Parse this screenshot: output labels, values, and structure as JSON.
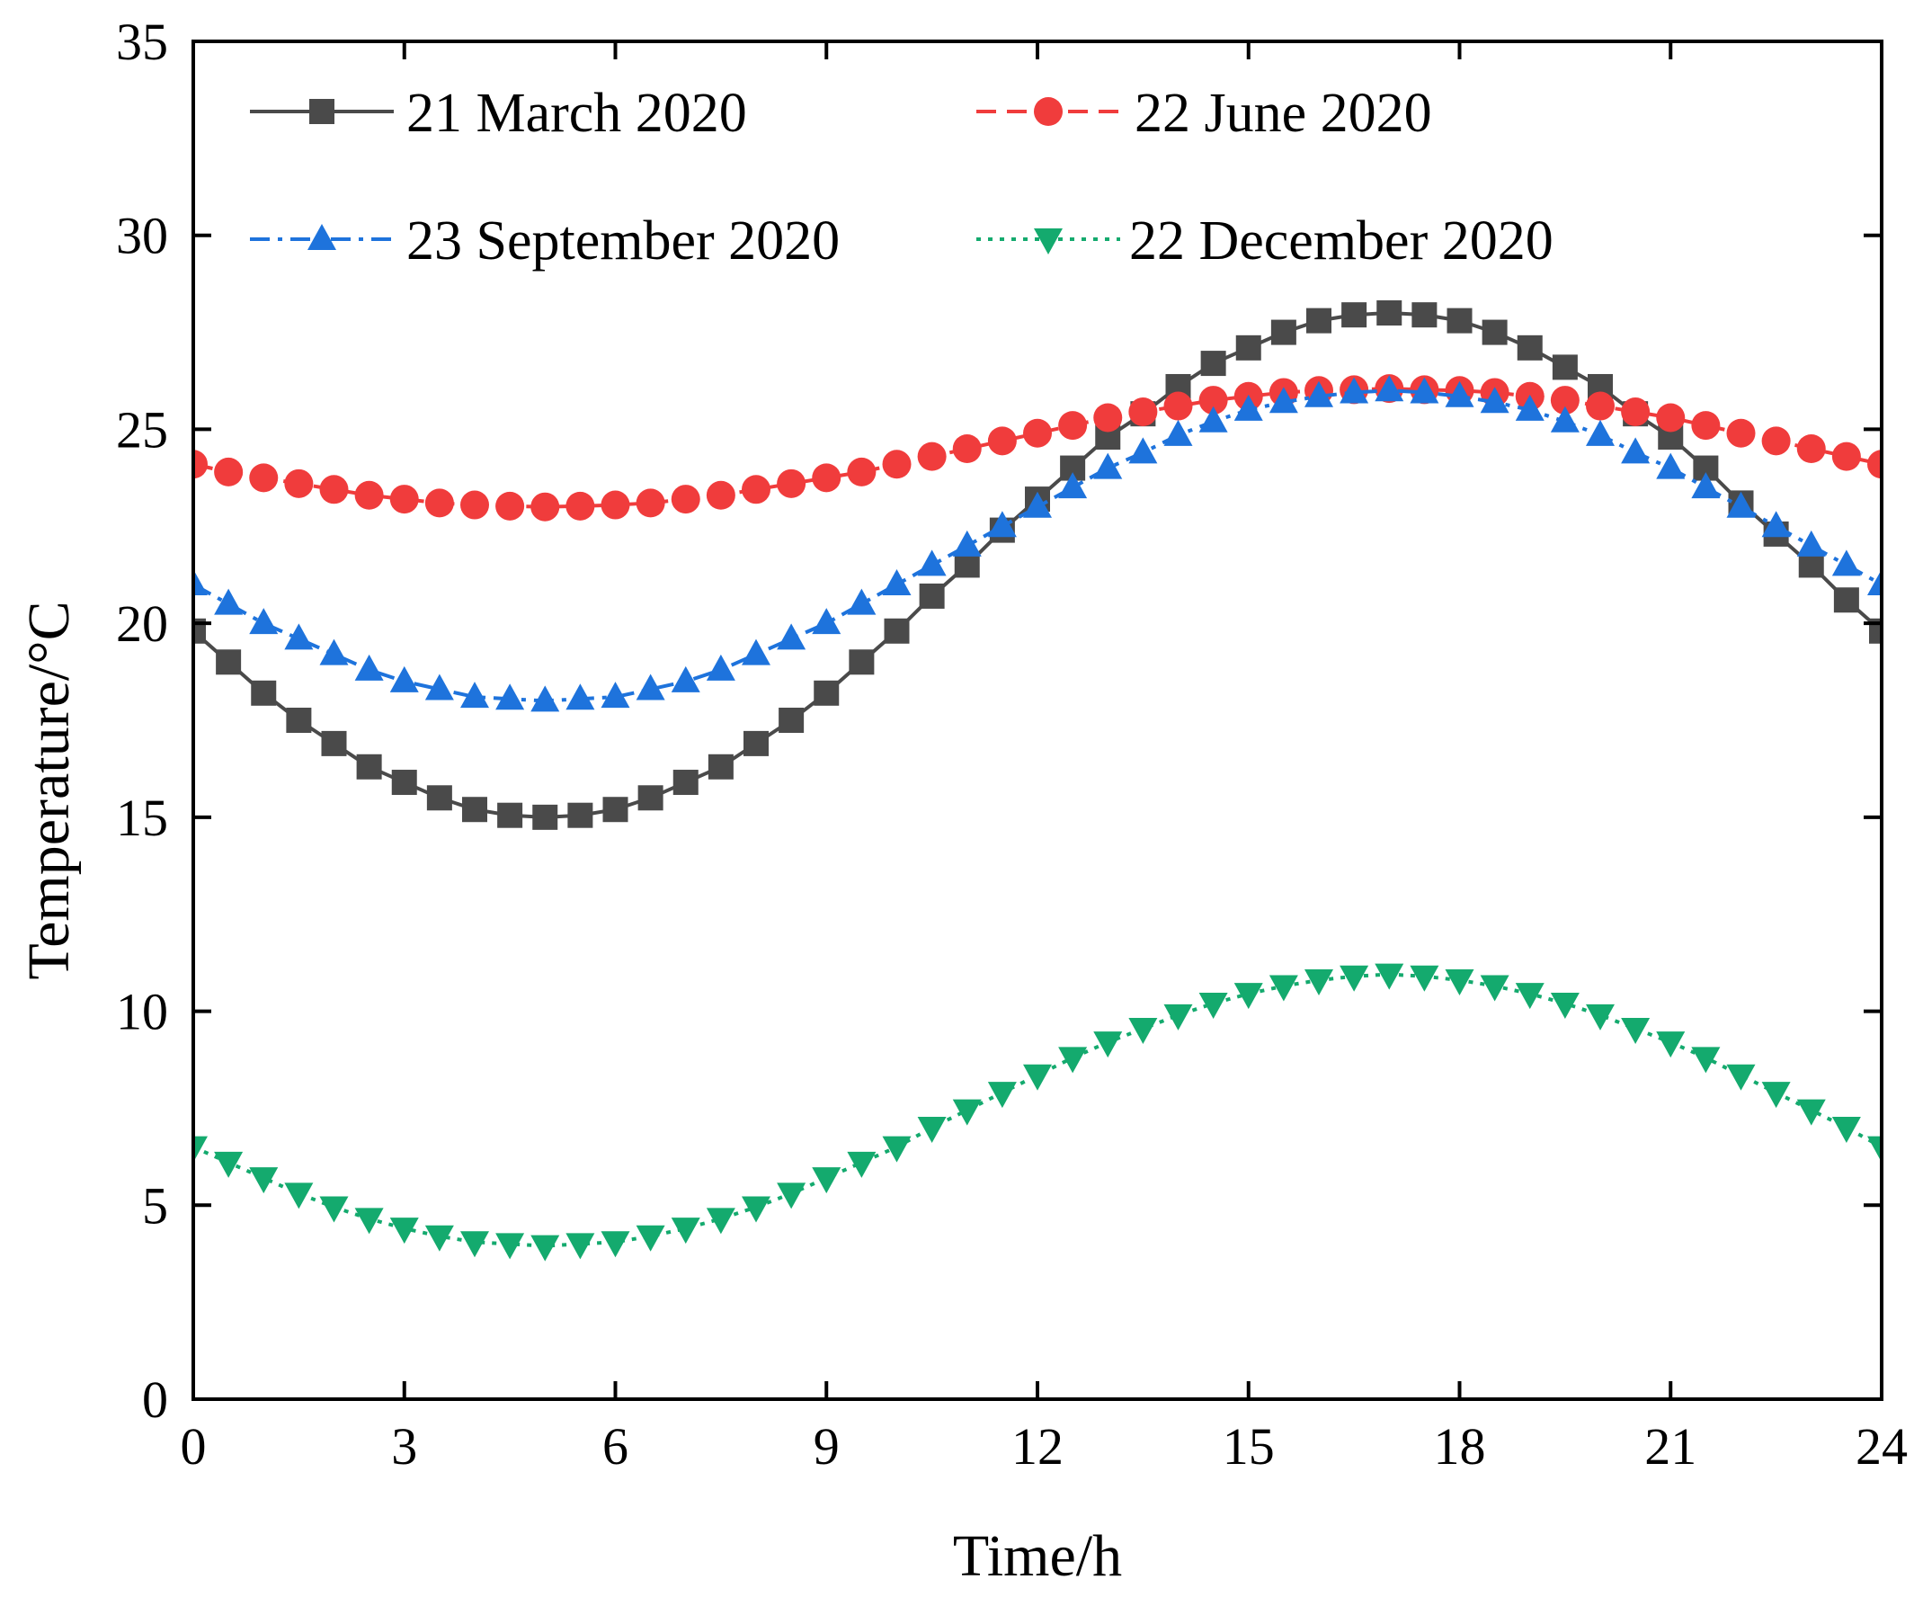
{
  "chart_data": {
    "type": "line",
    "title": "",
    "xlabel": "Time/h",
    "ylabel": "Temperature/°C",
    "xlim": [
      0,
      24
    ],
    "ylim": [
      0,
      35
    ],
    "xticks": [
      0,
      3,
      6,
      9,
      12,
      15,
      18,
      21,
      24
    ],
    "yticks": [
      0,
      5,
      10,
      15,
      20,
      25,
      30,
      35
    ],
    "grid": false,
    "legend_position": "top-left, two columns",
    "x": [
      0,
      0.5,
      1,
      1.5,
      2,
      2.5,
      3,
      3.5,
      4,
      4.5,
      5,
      5.5,
      6,
      6.5,
      7,
      7.5,
      8,
      8.5,
      9,
      9.5,
      10,
      10.5,
      11,
      11.5,
      12,
      12.5,
      13,
      13.5,
      14,
      14.5,
      15,
      15.5,
      16,
      16.5,
      17,
      17.5,
      18,
      18.5,
      19,
      19.5,
      20,
      20.5,
      21,
      21.5,
      22,
      22.5,
      23,
      23.5,
      24
    ],
    "series": [
      {
        "name": "21 March 2020",
        "color": "#4a4a4a",
        "marker": "square",
        "line_style": "solid",
        "values": [
          19.8,
          19.0,
          18.2,
          17.5,
          16.9,
          16.3,
          15.9,
          15.5,
          15.2,
          15.05,
          15.0,
          15.05,
          15.2,
          15.5,
          15.9,
          16.3,
          16.9,
          17.5,
          18.2,
          19.0,
          19.8,
          20.7,
          21.5,
          22.4,
          23.2,
          24.0,
          24.8,
          25.4,
          26.1,
          26.7,
          27.1,
          27.5,
          27.8,
          27.95,
          28.0,
          27.95,
          27.8,
          27.5,
          27.1,
          26.6,
          26.1,
          25.4,
          24.8,
          24.0,
          23.1,
          22.3,
          21.5,
          20.6,
          19.8
        ]
      },
      {
        "name": "22 June 2020",
        "color": "#f03c3c",
        "marker": "circle",
        "line_style": "dashed",
        "values": [
          24.1,
          23.9,
          23.75,
          23.6,
          23.45,
          23.3,
          23.2,
          23.1,
          23.05,
          23.02,
          23.0,
          23.02,
          23.05,
          23.1,
          23.2,
          23.3,
          23.45,
          23.6,
          23.75,
          23.9,
          24.1,
          24.3,
          24.5,
          24.7,
          24.9,
          25.1,
          25.3,
          25.45,
          25.6,
          25.75,
          25.85,
          25.95,
          26.0,
          26.02,
          26.05,
          26.02,
          26.0,
          25.95,
          25.85,
          25.75,
          25.6,
          25.45,
          25.3,
          25.1,
          24.9,
          24.7,
          24.5,
          24.3,
          24.1
        ]
      },
      {
        "name": "23 September 2020",
        "color": "#1e73dc",
        "marker": "triangle-up",
        "line_style": "dash-dot",
        "values": [
          21.0,
          20.5,
          20.0,
          19.6,
          19.2,
          18.8,
          18.5,
          18.3,
          18.1,
          18.05,
          18.0,
          18.05,
          18.1,
          18.3,
          18.5,
          18.8,
          19.2,
          19.6,
          20.0,
          20.5,
          21.0,
          21.5,
          22.0,
          22.5,
          23.0,
          23.5,
          24.0,
          24.4,
          24.85,
          25.2,
          25.5,
          25.7,
          25.85,
          25.95,
          26.0,
          25.95,
          25.85,
          25.7,
          25.5,
          25.2,
          24.85,
          24.4,
          24.0,
          23.5,
          23.0,
          22.5,
          22.0,
          21.5,
          21.0
        ]
      },
      {
        "name": "22 December 2020",
        "color": "#14aa6e",
        "marker": "triangle-down",
        "line_style": "dotted",
        "values": [
          6.5,
          6.1,
          5.7,
          5.3,
          4.95,
          4.65,
          4.4,
          4.2,
          4.05,
          4.0,
          3.95,
          4.0,
          4.05,
          4.2,
          4.4,
          4.65,
          4.95,
          5.3,
          5.7,
          6.1,
          6.5,
          7.0,
          7.45,
          7.9,
          8.35,
          8.8,
          9.2,
          9.55,
          9.9,
          10.2,
          10.45,
          10.65,
          10.8,
          10.9,
          10.95,
          10.9,
          10.8,
          10.65,
          10.45,
          10.2,
          9.9,
          9.55,
          9.2,
          8.8,
          8.35,
          7.9,
          7.45,
          7.0,
          6.5
        ]
      }
    ]
  }
}
